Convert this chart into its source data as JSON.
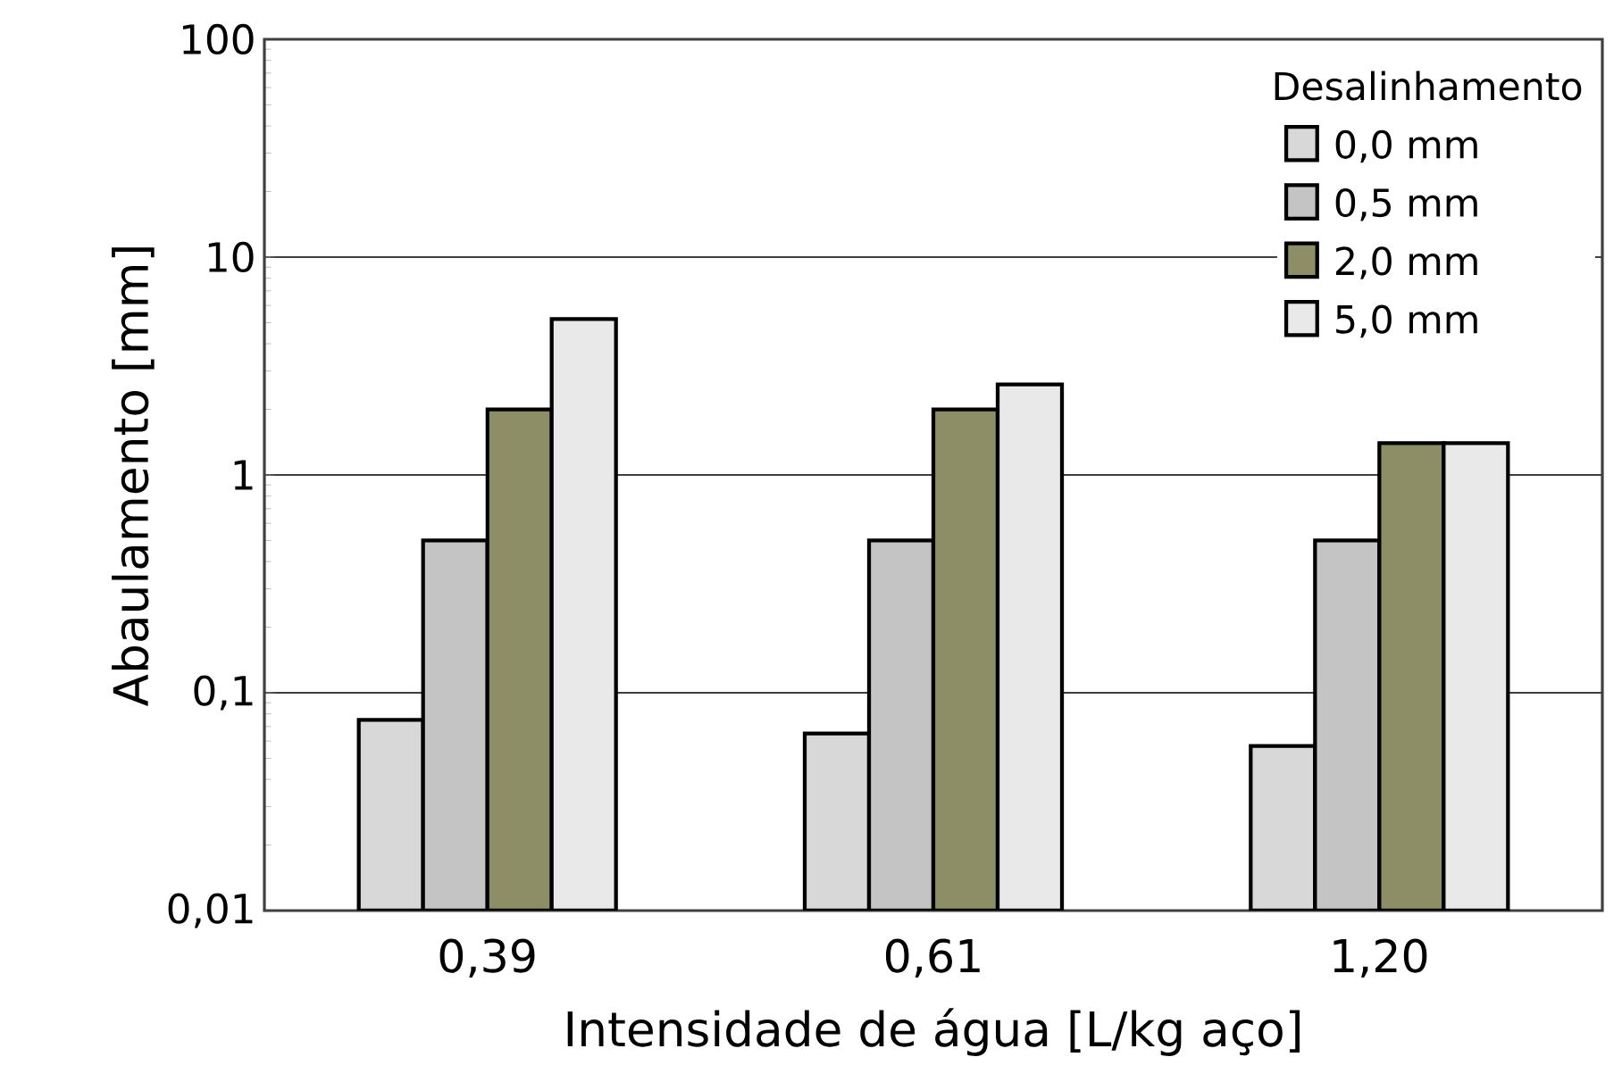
{
  "chart_data": {
    "type": "bar",
    "xlabel": "Intensidade de água [L/kg aço]",
    "ylabel": "Abaulamento [mm]",
    "legend_title": "Desalinhamento",
    "categories": [
      "0,39",
      "0,61",
      "1,20"
    ],
    "series": [
      {
        "name": "0,0 mm",
        "color": "#d8d8d8",
        "values": [
          0.075,
          0.065,
          0.057
        ]
      },
      {
        "name": "0,5 mm",
        "color": "#c4c4c4",
        "values": [
          0.5,
          0.5,
          0.5
        ]
      },
      {
        "name": "2,0 mm",
        "color": "#8e8e66",
        "values": [
          2,
          2,
          1.4
        ]
      },
      {
        "name": "5,0 mm",
        "color": "#e9e9e9",
        "values": [
          5.2,
          2.6,
          1.4
        ]
      }
    ],
    "log": "y",
    "ylim": [
      0.01,
      100
    ],
    "yticks": [
      {
        "value": 0.01,
        "label": "0,01"
      },
      {
        "value": 0.1,
        "label": "0,1"
      },
      1,
      10,
      100
    ],
    "grid": "y",
    "legend": "top right"
  }
}
